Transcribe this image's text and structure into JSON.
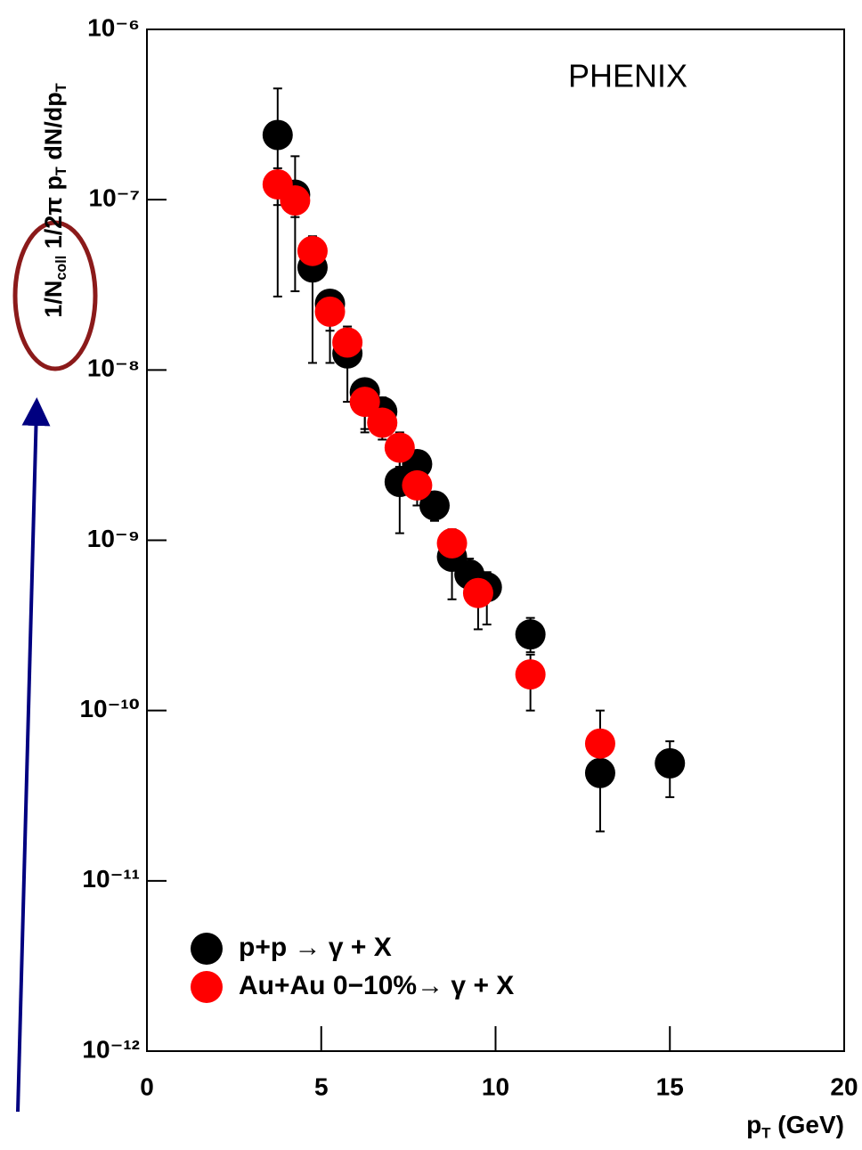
{
  "chart_data": {
    "type": "scatter",
    "annotation": "PHENIX",
    "ylabel": [
      {
        "text": "1/N"
      },
      {
        "text": "coll",
        "sub": true
      },
      {
        "text": " 1/2π p"
      },
      {
        "text": "T",
        "sub": true
      },
      {
        "text": " dN/dp"
      },
      {
        "text": "T",
        "sub": true
      }
    ],
    "xlabel": [
      {
        "text": "p"
      },
      {
        "text": "T",
        "sub": true
      },
      {
        "text": " (GeV)"
      }
    ],
    "xlim": [
      0,
      20
    ],
    "xticks": [
      0,
      5,
      10,
      15,
      20
    ],
    "ylim": [
      1e-12,
      1e-06
    ],
    "log_y": true,
    "yticks": [
      {
        "value": 1e-12,
        "label": "10⁻¹²"
      },
      {
        "value": 1e-11,
        "label": "10⁻¹¹"
      },
      {
        "value": 1e-10,
        "label": "10⁻¹⁰"
      },
      {
        "value": 1e-09,
        "label": "10⁻⁹"
      },
      {
        "value": 1e-08,
        "label": "10⁻⁸"
      },
      {
        "value": 1e-07,
        "label": "10⁻⁷"
      },
      {
        "value": 1e-06,
        "label": "10⁻⁶"
      }
    ],
    "legend": "bottom-left",
    "series": [
      {
        "name": "p+p → γ + X",
        "color": "#000000",
        "x": [
          3.75,
          4.25,
          4.75,
          5.25,
          5.75,
          6.25,
          6.75,
          7.25,
          7.75,
          8.25,
          8.75,
          9.25,
          9.75,
          11,
          13,
          15
        ],
        "values": [
          2.4e-07,
          1.07e-07,
          4e-08,
          2.45e-08,
          1.25e-08,
          7.4e-09,
          5.7e-09,
          2.2e-09,
          2.8e-09,
          1.6e-09,
          8e-10,
          6.3e-10,
          5.3e-10,
          2.8e-10,
          4.3e-11,
          4.9e-11
        ],
        "err_high": [
          2.1e-07,
          7.3e-08,
          2.1e-08,
          4e-09,
          5.5e-09,
          1.1e-09,
          1.2e-09,
          1.2e-09,
          5e-10,
          3e-10,
          2e-10,
          1.5e-10,
          1.2e-10,
          7e-11,
          1.3e-11,
          1.7e-11
        ],
        "err_low": [
          2.13e-07,
          7.8e-08,
          2.9e-08,
          1.35e-08,
          6e-09,
          3.1e-09,
          1.5e-09,
          1.1e-09,
          6e-10,
          3e-10,
          3.5e-10,
          1.8e-10,
          2.1e-10,
          6e-11,
          2.35e-11,
          1.8e-11
        ]
      },
      {
        "name": "Au+Au 0−10%→ γ + X",
        "color": "#ff0000",
        "x": [
          3.75,
          4.25,
          4.75,
          5.25,
          5.75,
          6.25,
          6.75,
          7.25,
          7.75,
          8.75,
          9.5,
          11,
          13
        ],
        "values": [
          1.23e-07,
          9.9e-08,
          5e-08,
          2.2e-08,
          1.45e-08,
          6.5e-09,
          4.9e-09,
          3.5e-09,
          2.1e-09,
          9.6e-10,
          4.9e-10,
          1.63e-10,
          6.4e-11
        ],
        "err_high": [
          3e-08,
          2e-08,
          1e-08,
          5e-09,
          3e-09,
          2e-09,
          1e-09,
          8e-10,
          5e-10,
          2e-10,
          1.5e-10,
          5e-11,
          3.6e-11
        ],
        "err_low": [
          3e-08,
          2e-08,
          1e-08,
          5e-09,
          3e-09,
          2e-09,
          1e-09,
          8e-10,
          5e-10,
          2e-10,
          1.9e-10,
          6.3e-11,
          2e-11
        ]
      }
    ]
  }
}
